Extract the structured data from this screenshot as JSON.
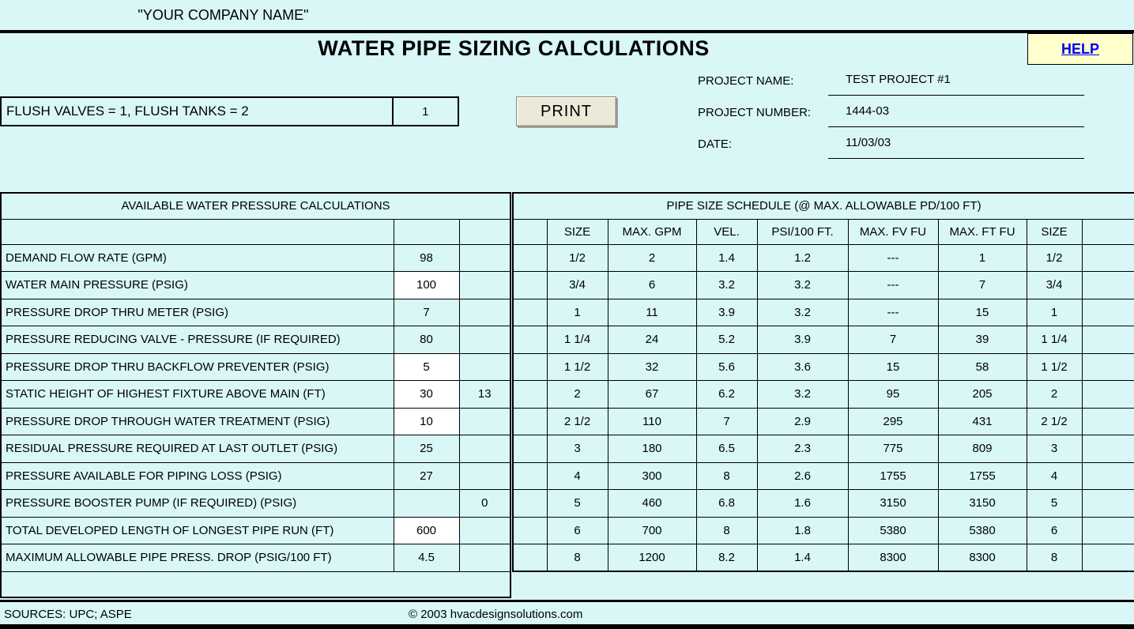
{
  "header": {
    "company_name": "\"YOUR COMPANY NAME\"",
    "title": "WATER PIPE SIZING CALCULATIONS",
    "help_label": "HELP"
  },
  "controls": {
    "print_label": "PRINT"
  },
  "flush": {
    "label": "FLUSH VALVES = 1, FLUSH TANKS = 2",
    "value": "1"
  },
  "project": {
    "rows": [
      {
        "label": "PROJECT NAME:",
        "value": "TEST PROJECT #1"
      },
      {
        "label": "PROJECT NUMBER:",
        "value": "1444-03"
      },
      {
        "label": "DATE:",
        "value": "11/03/03"
      }
    ]
  },
  "pressure_table": {
    "title": "AVAILABLE WATER PRESSURE CALCULATIONS",
    "rows": [
      {
        "label": "DEMAND FLOW RATE (GPM)",
        "value": "98",
        "extra": "",
        "input": false
      },
      {
        "label": "WATER MAIN PRESSURE (PSIG)",
        "value": "100",
        "extra": "",
        "input": true
      },
      {
        "label": "PRESSURE DROP THRU METER (PSIG)",
        "value": "7",
        "extra": "",
        "input": false
      },
      {
        "label": "PRESSURE REDUCING VALVE - PRESSURE (IF REQUIRED)",
        "value": "80",
        "extra": "",
        "input": false
      },
      {
        "label": "PRESSURE DROP THRU BACKFLOW PREVENTER (PSIG)",
        "value": "5",
        "extra": "",
        "input": true
      },
      {
        "label": "STATIC HEIGHT OF HIGHEST FIXTURE ABOVE MAIN (FT)",
        "value": "30",
        "extra": "13",
        "input": true
      },
      {
        "label": "PRESSURE DROP THROUGH WATER TREATMENT (PSIG)",
        "value": "10",
        "extra": "",
        "input": true
      },
      {
        "label": "RESIDUAL PRESSURE REQUIRED AT LAST OUTLET (PSIG)",
        "value": "25",
        "extra": "",
        "input": false
      },
      {
        "label": "PRESSURE AVAILABLE FOR PIPING LOSS (PSIG)",
        "value": "27",
        "extra": "",
        "input": false
      },
      {
        "label": "PRESSURE BOOSTER PUMP (IF REQUIRED) (PSIG)",
        "value": "",
        "extra": "0",
        "input": false
      },
      {
        "label": "TOTAL DEVELOPED LENGTH OF LONGEST PIPE RUN (FT)",
        "value": "600",
        "extra": "",
        "input": true
      },
      {
        "label": "MAXIMUM ALLOWABLE PIPE PRESS. DROP (PSIG/100 FT)",
        "value": "4.5",
        "extra": "",
        "input": false
      }
    ]
  },
  "pipe_table": {
    "title": "PIPE SIZE SCHEDULE  (@ MAX. ALLOWABLE PD/100 FT)",
    "columns": [
      "",
      "SIZE",
      "MAX. GPM",
      "VEL.",
      "PSI/100 FT.",
      "MAX. FV FU",
      "MAX. FT FU",
      "SIZE",
      ""
    ],
    "rows": [
      [
        "",
        "1/2",
        "2",
        "1.4",
        "1.2",
        "---",
        "1",
        "1/2",
        ""
      ],
      [
        "",
        "3/4",
        "6",
        "3.2",
        "3.2",
        "---",
        "7",
        "3/4",
        ""
      ],
      [
        "",
        "1",
        "11",
        "3.9",
        "3.2",
        "---",
        "15",
        "1",
        ""
      ],
      [
        "",
        "1 1/4",
        "24",
        "5.2",
        "3.9",
        "7",
        "39",
        "1 1/4",
        ""
      ],
      [
        "",
        "1 1/2",
        "32",
        "5.6",
        "3.6",
        "15",
        "58",
        "1 1/2",
        ""
      ],
      [
        "",
        "2",
        "67",
        "6.2",
        "3.2",
        "95",
        "205",
        "2",
        ""
      ],
      [
        "",
        "2 1/2",
        "110",
        "7",
        "2.9",
        "295",
        "431",
        "2 1/2",
        ""
      ],
      [
        "",
        "3",
        "180",
        "6.5",
        "2.3",
        "775",
        "809",
        "3",
        ""
      ],
      [
        "",
        "4",
        "300",
        "8",
        "2.6",
        "1755",
        "1755",
        "4",
        ""
      ],
      [
        "",
        "5",
        "460",
        "6.8",
        "1.6",
        "3150",
        "3150",
        "5",
        ""
      ],
      [
        "",
        "6",
        "700",
        "8",
        "1.8",
        "5380",
        "5380",
        "6",
        ""
      ],
      [
        "",
        "8",
        "1200",
        "8.2",
        "1.4",
        "8300",
        "8300",
        "8",
        ""
      ]
    ]
  },
  "footer": {
    "sources": "SOURCES: UPC; ASPE",
    "copyright": "© 2003 hvacdesignsolutions.com"
  },
  "colors": {
    "background": "#D9F7F7",
    "input_cell": "#FFFFFF",
    "help_background": "#FFFFCC",
    "help_link": "#0000EE",
    "button_face": "#ECE9D8",
    "border": "#000000"
  }
}
